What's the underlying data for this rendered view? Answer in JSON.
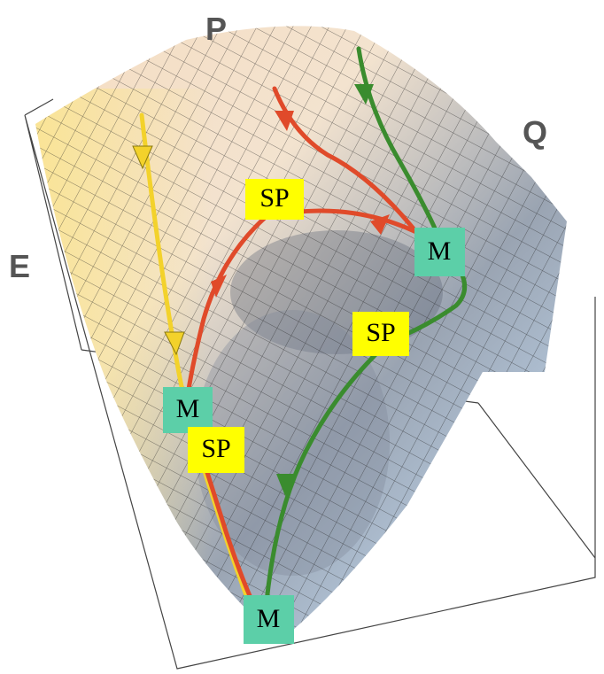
{
  "axes": {
    "p": "P",
    "q": "Q",
    "e": "E"
  },
  "points": [
    {
      "label": "SP"
    },
    {
      "label": "M"
    },
    {
      "label": "SP"
    },
    {
      "label": "M"
    },
    {
      "label": "SP"
    },
    {
      "label": "M"
    }
  ]
}
